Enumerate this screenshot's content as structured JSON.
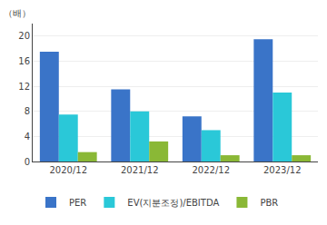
{
  "chart_data": {
    "type": "bar",
    "categories": [
      "2020/12",
      "2021/12",
      "2022/12",
      "2023/12"
    ],
    "series": [
      {
        "name": "PER",
        "color": "#3a74c8",
        "values": [
          17.5,
          11.5,
          7.2,
          19.5
        ]
      },
      {
        "name": "EV(지분조정)/EBITDA",
        "color": "#2ac8d8",
        "values": [
          7.5,
          8.0,
          5.0,
          11.0
        ]
      },
      {
        "name": "PBR",
        "color": "#8ab836",
        "values": [
          1.5,
          3.2,
          1.0,
          1.0
        ]
      }
    ],
    "ylabel": "（배）",
    "ylim": [
      0,
      22
    ],
    "yticks": [
      0,
      4,
      8,
      12,
      16,
      20
    ],
    "grid": true,
    "legend": "bottom"
  }
}
